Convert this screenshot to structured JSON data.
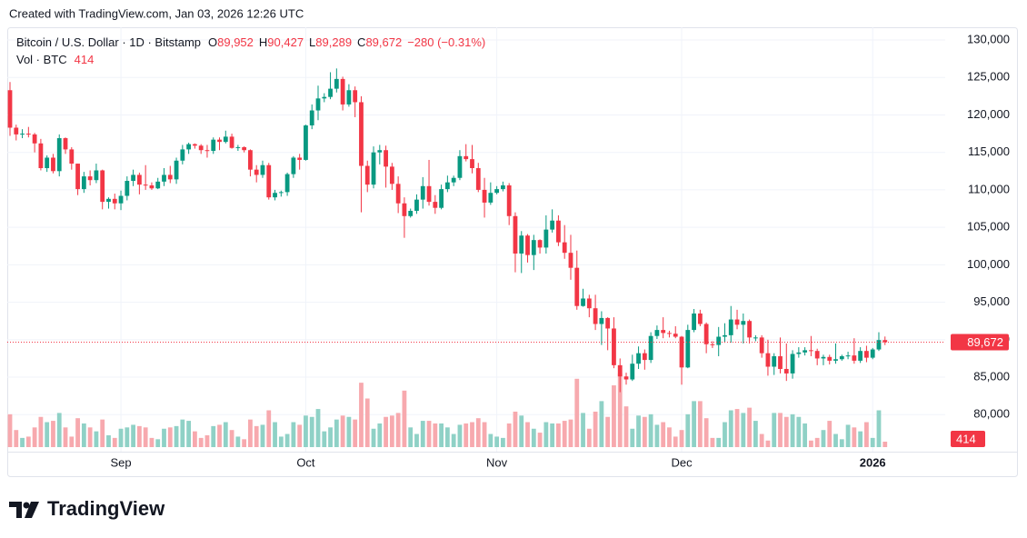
{
  "header": "Created with TradingView.com, Jan 03, 2026 12:26 UTC",
  "footer": "TradingView",
  "chart_data": {
    "type": "candlestick",
    "legend": {
      "symbol": "Bitcoin / U.S. Dollar · 1D · Bitstamp",
      "ohlc": [
        {
          "key": "O",
          "value": "89,952"
        },
        {
          "key": "H",
          "value": "90,427"
        },
        {
          "key": "L",
          "value": "89,289"
        },
        {
          "key": "C",
          "value": "89,672"
        }
      ],
      "change": "−280 (−0.31%)",
      "volume_title": "Vol · BTC"
    },
    "last_price_label": "89,672",
    "up_color": "#089981",
    "down_color": "#f23645",
    "up_volume_color": "#8fd1c6",
    "down_volume_color": "#f7a9ae",
    "grid": true,
    "ylim": [
      75000,
      131700
    ],
    "yticks": [
      {
        "value": 80000,
        "label": "80,000"
      },
      {
        "value": 85000,
        "label": "85,000"
      },
      {
        "value": 90000,
        "label": "90,000"
      },
      {
        "value": 95000,
        "label": "95,000"
      },
      {
        "value": 100000,
        "label": "100,000"
      },
      {
        "value": 105000,
        "label": "105,000"
      },
      {
        "value": 110000,
        "label": "110,000"
      },
      {
        "value": 115000,
        "label": "115,000"
      },
      {
        "value": 120000,
        "label": "120,000"
      },
      {
        "value": 125000,
        "label": "125,000"
      },
      {
        "value": 130000,
        "label": "130,000"
      }
    ],
    "xticks": [
      {
        "value": 18,
        "label": "Sep"
      },
      {
        "value": 48,
        "label": "Oct"
      },
      {
        "value": 79,
        "label": "Nov"
      },
      {
        "value": 109,
        "label": "Dec"
      },
      {
        "value": 140,
        "label": "2026"
      }
    ],
    "volume_ylim": [
      0,
      6500
    ],
    "open": [
      123300,
      118300,
      117400,
      117500,
      117400,
      116200,
      112900,
      114300,
      112500,
      116900,
      115400,
      113500,
      110100,
      111800,
      111300,
      112600,
      108400,
      108800,
      108200,
      109200,
      111200,
      112000,
      110700,
      110600,
      110200,
      111100,
      112000,
      111400,
      113900,
      115400,
      116100,
      115900,
      115300,
      115200,
      116700,
      116400,
      117100,
      115600,
      115700,
      115300,
      112700,
      112000,
      113300,
      109000,
      109600,
      109700,
      112100,
      114300,
      114000,
      118600,
      120600,
      122200,
      122400,
      123500,
      124800,
      121400,
      123300,
      121700,
      113200,
      110700,
      115000,
      115300,
      113100,
      110800,
      108200,
      106500,
      107200,
      108700,
      110500,
      108400,
      107600,
      110100,
      111000,
      111600,
      114500,
      114100,
      112900,
      110000,
      108300,
      109600,
      110100,
      110600,
      106500,
      101500,
      103900,
      101300,
      103300,
      102300,
      104700,
      105900,
      103000,
      101600,
      99600,
      94500,
      95500,
      94200,
      92100,
      92900,
      91500,
      86600,
      85100,
      84700,
      86800,
      88200,
      87300,
      90500,
      91300,
      90900,
      90800,
      90400,
      86300,
      91300,
      93500,
      92100,
      89400,
      89300,
      90400,
      90600,
      92700,
      92000,
      92500,
      90300,
      90300,
      88200,
      86400,
      87800,
      86100,
      85500,
      88100,
      88300,
      88600,
      88500,
      87500,
      87700,
      87200,
      87400,
      87800,
      87900,
      87200,
      88500,
      87600,
      88700,
      89952
    ],
    "high": [
      124400,
      118700,
      118100,
      118400,
      117600,
      116800,
      114600,
      114800,
      117400,
      117000,
      115700,
      113500,
      112400,
      112600,
      113500,
      112700,
      109000,
      109500,
      109900,
      111800,
      112700,
      112300,
      113300,
      111000,
      111600,
      112900,
      113200,
      114300,
      116000,
      116300,
      116200,
      116100,
      116000,
      117000,
      117000,
      117900,
      117500,
      116000,
      115800,
      115400,
      113300,
      113900,
      113600,
      110000,
      109900,
      112300,
      114500,
      114800,
      118700,
      121400,
      123900,
      122900,
      125700,
      126200,
      125100,
      124100,
      123800,
      122500,
      113900,
      115800,
      116000,
      115900,
      113600,
      111800,
      109000,
      107500,
      109400,
      111700,
      114000,
      109300,
      110700,
      111900,
      111900,
      115300,
      116100,
      116000,
      113600,
      111600,
      111000,
      110500,
      111100,
      110900,
      107000,
      104500,
      104100,
      104000,
      103400,
      106600,
      107400,
      106600,
      105300,
      104000,
      101900,
      96800,
      96000,
      96000,
      93800,
      93000,
      93000,
      87500,
      85600,
      88000,
      89100,
      88700,
      91000,
      91900,
      93000,
      91200,
      91800,
      90500,
      92000,
      94100,
      94000,
      92300,
      89800,
      91700,
      92200,
      94500,
      94000,
      93500,
      92700,
      90600,
      90600,
      90000,
      88200,
      90300,
      89500,
      88600,
      89000,
      89000,
      90500,
      88800,
      88000,
      88000,
      89500,
      88000,
      88400,
      90200,
      89000,
      89200,
      88900,
      91000,
      90427
    ],
    "low": [
      117200,
      116600,
      116900,
      117000,
      115000,
      112600,
      112400,
      112200,
      111800,
      114800,
      112700,
      109300,
      109600,
      110600,
      110900,
      107400,
      107500,
      107400,
      107300,
      108600,
      110500,
      109400,
      110000,
      110000,
      110100,
      110500,
      110900,
      110800,
      113400,
      114800,
      115500,
      114800,
      114300,
      114800,
      115300,
      116200,
      115500,
      115200,
      115000,
      111800,
      111000,
      111600,
      108700,
      108600,
      109100,
      109200,
      111600,
      112700,
      113900,
      118100,
      119300,
      121700,
      122100,
      123000,
      120600,
      121100,
      119700,
      107000,
      109700,
      110200,
      113400,
      110300,
      110000,
      106900,
      103600,
      106300,
      106800,
      107500,
      107900,
      106800,
      107400,
      109700,
      110500,
      111300,
      113800,
      112200,
      109700,
      106300,
      108000,
      109400,
      109800,
      105300,
      99000,
      98900,
      100300,
      99300,
      101500,
      101500,
      104300,
      102500,
      100800,
      98000,
      94000,
      94400,
      93000,
      91300,
      89300,
      88600,
      86200,
      83000,
      84000,
      84500,
      86100,
      86000,
      86900,
      90100,
      90200,
      90300,
      90200,
      84000,
      86200,
      91000,
      91800,
      88200,
      88900,
      87800,
      89600,
      89600,
      91400,
      89500,
      89500,
      89800,
      87600,
      85200,
      85300,
      85500,
      84500,
      84800,
      87600,
      87900,
      87800,
      86600,
      86600,
      86700,
      86800,
      87200,
      87400,
      86800,
      86900,
      87000,
      87400,
      88500,
      89289
    ],
    "close": [
      118300,
      117400,
      117500,
      117400,
      116200,
      112900,
      114300,
      112500,
      116900,
      115400,
      113500,
      110100,
      111800,
      111300,
      112600,
      108400,
      108800,
      108200,
      109200,
      111200,
      112000,
      110700,
      110600,
      110200,
      111100,
      112000,
      111400,
      113900,
      115400,
      116100,
      115900,
      115300,
      115200,
      116700,
      116400,
      117100,
      115600,
      115700,
      115300,
      112700,
      112000,
      113300,
      109000,
      109600,
      109700,
      112100,
      114300,
      114000,
      118600,
      120600,
      122200,
      122400,
      123500,
      124800,
      121400,
      123300,
      121700,
      113200,
      110700,
      115000,
      115300,
      113100,
      110800,
      108200,
      106500,
      107200,
      108700,
      110500,
      108400,
      107600,
      110100,
      111000,
      111600,
      114500,
      114100,
      112900,
      110000,
      108300,
      109600,
      110100,
      110600,
      106500,
      101500,
      103900,
      101300,
      103300,
      102300,
      104700,
      105900,
      103000,
      101600,
      99600,
      94500,
      95500,
      94200,
      92100,
      92900,
      91500,
      86600,
      85100,
      84700,
      86800,
      88200,
      87300,
      90500,
      91300,
      90900,
      90800,
      90400,
      86300,
      91300,
      93500,
      92100,
      89400,
      89300,
      90400,
      90600,
      92700,
      92000,
      92500,
      90300,
      90300,
      88200,
      86400,
      87800,
      86100,
      85500,
      88100,
      88300,
      88600,
      88500,
      87500,
      87700,
      87200,
      87400,
      87800,
      87900,
      87200,
      88500,
      87600,
      88700,
      89952,
      89672
    ],
    "volume": [
      2500,
      1300,
      700,
      800,
      1500,
      2300,
      1900,
      2000,
      2600,
      1500,
      800,
      2200,
      1800,
      1500,
      1200,
      2100,
      900,
      700,
      1400,
      1500,
      1700,
      1600,
      1500,
      700,
      600,
      1400,
      1500,
      1600,
      2100,
      2000,
      1200,
      700,
      900,
      1600,
      1700,
      1900,
      1300,
      800,
      600,
      2100,
      1600,
      1700,
      2800,
      1900,
      800,
      1000,
      1900,
      1700,
      2400,
      2300,
      2900,
      1200,
      1500,
      2100,
      2400,
      2300,
      2100,
      4900,
      3700,
      1400,
      1800,
      2300,
      2400,
      2600,
      4300,
      1500,
      1000,
      2000,
      2000,
      1800,
      1800,
      1500,
      1000,
      1700,
      1800,
      1900,
      2200,
      1900,
      1000,
      800,
      700,
      1800,
      2700,
      2400,
      1900,
      1400,
      1100,
      1900,
      1800,
      1800,
      2000,
      2100,
      5200,
      2600,
      1400,
      2700,
      3500,
      2300,
      4700,
      5600,
      3100,
      1400,
      2400,
      2300,
      2500,
      1700,
      1900,
      1500,
      800,
      1300,
      2500,
      3500,
      3500,
      2200,
      700,
      700,
      1900,
      2800,
      2900,
      2600,
      3000,
      2000,
      1000,
      500,
      2600,
      2600,
      2300,
      2500,
      2300,
      1800,
      500,
      700,
      1300,
      2000,
      1000,
      600,
      1700,
      1500,
      1200,
      1900,
      700,
      2800,
      414
    ]
  }
}
